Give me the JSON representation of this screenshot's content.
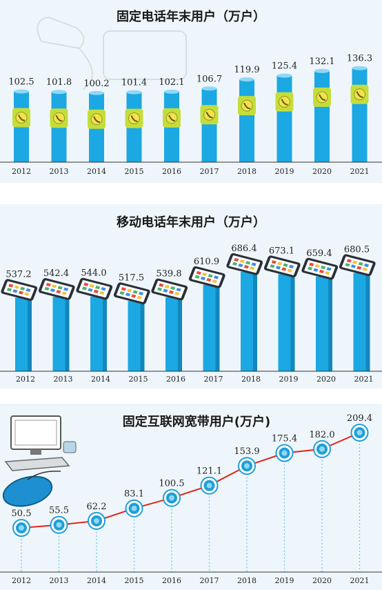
{
  "chart_data": [
    {
      "type": "bar",
      "title": "固定电话年末用户（万户）",
      "categories": [
        "2012",
        "2013",
        "2014",
        "2015",
        "2016",
        "2017",
        "2018",
        "2019",
        "2020",
        "2021"
      ],
      "values": [
        102.5,
        101.8,
        100.2,
        101.4,
        102.1,
        106.7,
        119.9,
        125.4,
        132.1,
        136.3
      ],
      "value_labels": [
        "102.5",
        "101.8",
        "100.2",
        "101.4",
        "102.1",
        "106.7",
        "119.9",
        "125.4",
        "132.1",
        "136.3"
      ],
      "ylim": [
        0,
        140
      ],
      "grid": false,
      "colors": {
        "bar": "#1ba8e3",
        "band": "#c5dd3a",
        "cap": "#8fd8f5"
      },
      "icon": "telephone-icon"
    },
    {
      "type": "bar",
      "title": "移动电话年末用户（万户）",
      "categories": [
        "2012",
        "2013",
        "2014",
        "2015",
        "2016",
        "2017",
        "2018",
        "2019",
        "2020",
        "2021"
      ],
      "values": [
        537.2,
        542.4,
        544.0,
        517.5,
        539.8,
        610.9,
        686.4,
        673.1,
        659.4,
        680.5
      ],
      "value_labels": [
        "537.2",
        "542.4",
        "544.0",
        "517.5",
        "539.8",
        "610.9",
        "686.4",
        "673.1",
        "659.4",
        "680.5"
      ],
      "ylim": [
        0,
        700
      ],
      "grid": false,
      "colors": {
        "bar": "#1ba8e3",
        "phone": "#5cc4ec"
      },
      "icon": "smartphone-icon"
    },
    {
      "type": "line",
      "title": "固定互联网宽带用户(万户)",
      "categories": [
        "2012",
        "2013",
        "2014",
        "2015",
        "2016",
        "2017",
        "2018",
        "2019",
        "2020",
        "2021"
      ],
      "values": [
        50.5,
        55.5,
        62.2,
        83.1,
        100.5,
        121.1,
        153.9,
        175.4,
        182.0,
        209.4
      ],
      "value_labels": [
        "50.5",
        "55.5",
        "62.2",
        "83.1",
        "100.5",
        "121.1",
        "153.9",
        "175.4",
        "182.0",
        "209.4"
      ],
      "ylim": [
        0,
        220
      ],
      "grid": false,
      "colors": {
        "line": "#e0251b",
        "marker": "#1e9fd6",
        "dropline": "#6ec6ea"
      },
      "icon": "computer-icon"
    }
  ]
}
